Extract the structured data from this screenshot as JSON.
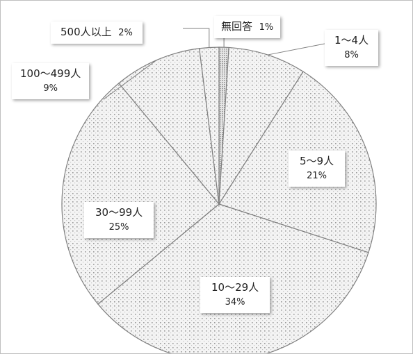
{
  "chart_data": {
    "type": "pie",
    "title": "",
    "start": "12 o'clock, clockwise",
    "slices": [
      {
        "label": "無回答",
        "value": 1,
        "percent_label": "1%"
      },
      {
        "label": "1～4人",
        "value": 8,
        "percent_label": "8%"
      },
      {
        "label": "5～9人",
        "value": 21,
        "percent_label": "21%"
      },
      {
        "label": "10～29人",
        "value": 34,
        "percent_label": "34%"
      },
      {
        "label": "30～99人",
        "value": 25,
        "percent_label": "25%"
      },
      {
        "label": "100～499人",
        "value": 9,
        "percent_label": "9%"
      },
      {
        "label": "500人以上",
        "value": 2,
        "percent_label": "2%"
      }
    ],
    "colors": {
      "slice_fill": "#f4f4f4",
      "dot": "#9a9a9a",
      "outline": "#7f7f7f",
      "leader_line": "#7f7f7f"
    }
  }
}
